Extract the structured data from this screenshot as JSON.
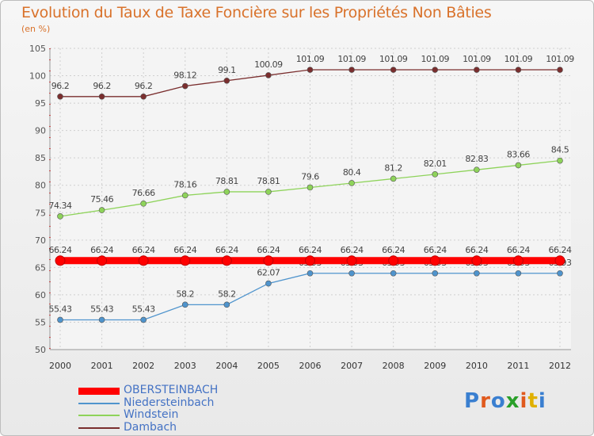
{
  "title": "Evolution du Taux de Taxe Foncière sur les Propriétés Non Bâties",
  "subtitle": "(en %)",
  "logo": {
    "letters": [
      "P",
      "r",
      "o",
      "x",
      "i",
      "t",
      "i"
    ],
    "colors": [
      "#3a7fd0",
      "#e05a1e",
      "#3a7fd0",
      "#2aa02a",
      "#e05a1e",
      "#e0b000",
      "#3a7fd0"
    ]
  },
  "chart_data": {
    "type": "line",
    "categories": [
      "2000",
      "2001",
      "2002",
      "2003",
      "2004",
      "2005",
      "2006",
      "2007",
      "2008",
      "2009",
      "2010",
      "2011",
      "2012"
    ],
    "ylim": [
      50,
      105
    ],
    "yticks": [
      50,
      55,
      60,
      65,
      70,
      75,
      80,
      85,
      90,
      95,
      100,
      105
    ],
    "grid": true,
    "legend_position": "bottom-left",
    "series": [
      {
        "name": "OBERSTEINBACH",
        "color": "#ff0000",
        "values": [
          66.24,
          66.24,
          66.24,
          66.24,
          66.24,
          66.24,
          66.24,
          66.24,
          66.24,
          66.24,
          66.24,
          66.24,
          66.24
        ],
        "labels": [
          "66.24",
          "66.24",
          "66.24",
          "66.24",
          "66.24",
          "66.24",
          "66.24",
          "66.24",
          "66.24",
          "66.24",
          "66.24",
          "66.24",
          "66.24"
        ]
      },
      {
        "name": "Niedersteinbach",
        "color": "#4f94cd",
        "values": [
          55.43,
          55.43,
          55.43,
          58.2,
          58.2,
          62.07,
          63.93,
          63.93,
          63.93,
          63.93,
          63.93,
          63.93,
          63.93
        ],
        "labels": [
          "55.43",
          "55.43",
          "55.43",
          "58.2",
          "58.2",
          "62.07",
          "63.93",
          "63.93",
          "63.93",
          "63.93",
          "63.93",
          "63.93",
          "63.93"
        ]
      },
      {
        "name": "Windstein",
        "color": "#8ed35a",
        "values": [
          74.34,
          75.46,
          76.66,
          78.16,
          78.81,
          78.81,
          79.6,
          80.4,
          81.2,
          82.01,
          82.83,
          83.66,
          84.5
        ],
        "labels": [
          "74.34",
          "75.46",
          "76.66",
          "78.16",
          "78.81",
          "78.81",
          "79.6",
          "80.4",
          "81.2",
          "82.01",
          "82.83",
          "83.66",
          "84.5"
        ]
      },
      {
        "name": "Dambach",
        "color": "#7a2e2e",
        "values": [
          96.2,
          96.2,
          96.2,
          98.12,
          99.1,
          100.09,
          101.09,
          101.09,
          101.09,
          101.09,
          101.09,
          101.09,
          101.09
        ],
        "labels": [
          "96.2",
          "96.2",
          "96.2",
          "98.12",
          "99.1",
          "100.09",
          "101.09",
          "101.09",
          "101.09",
          "101.09",
          "101.09",
          "101.09",
          "101.09"
        ]
      }
    ]
  }
}
